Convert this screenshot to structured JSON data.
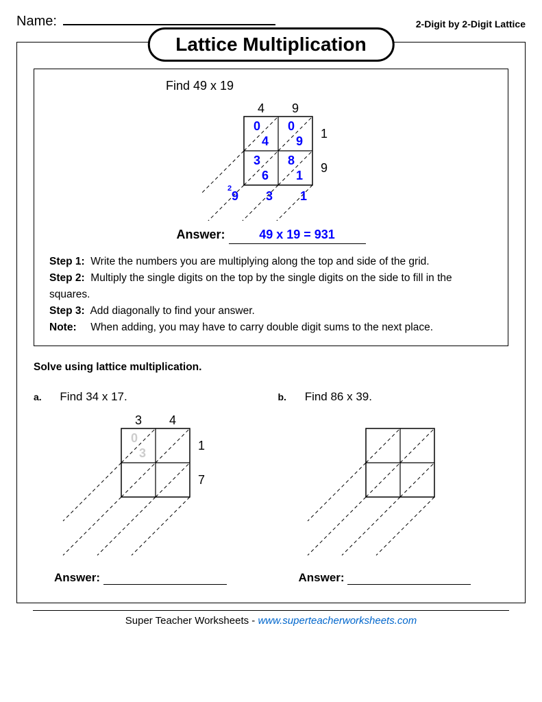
{
  "header": {
    "name_label": "Name:",
    "topic": "2-Digit by 2-Digit Lattice"
  },
  "title": "Lattice Multiplication",
  "example": {
    "prompt": "Find 49 x 19",
    "top_digits": [
      "4",
      "9"
    ],
    "side_digits": [
      "1",
      "9"
    ],
    "cells": [
      {
        "tl": "0",
        "br": "4"
      },
      {
        "tl": "0",
        "br": "9"
      },
      {
        "tl": "3",
        "br": "6"
      },
      {
        "tl": "8",
        "br": "1"
      }
    ],
    "diag_sums": [
      "9",
      "3",
      "1"
    ],
    "carry": "2",
    "answer_label": "Answer:",
    "answer_value": "49 x 19 = 931"
  },
  "steps": [
    {
      "label": "Step 1:",
      "text": "Write the numbers you are multiplying along the top and side of the grid."
    },
    {
      "label": "Step 2:",
      "text": "Multiply the single digits on the top by the single digits on the side to fill in the squares."
    },
    {
      "label": "Step 3:",
      "text": "Add diagonally to find your answer."
    },
    {
      "label": "Note:",
      "text": "When adding, you may have to carry double digit sums to the next place."
    }
  ],
  "instruction": "Solve using lattice multiplication.",
  "problems": [
    {
      "letter": "a.",
      "prompt": "Find 34 x 17.",
      "top_digits": [
        "3",
        "4"
      ],
      "side_digits": [
        "1",
        "7"
      ],
      "faded": {
        "tl": "0",
        "br": "3"
      },
      "answer_label": "Answer:"
    },
    {
      "letter": "b.",
      "prompt": "Find 86 x 39.",
      "top_digits": [
        "",
        ""
      ],
      "side_digits": [
        "",
        ""
      ],
      "faded": null,
      "answer_label": "Answer:"
    }
  ],
  "footer": {
    "text": "Super Teacher Worksheets - ",
    "url": "www.superteacherworksheets.com"
  },
  "style": {
    "digit_color": "#0000ff",
    "faded_color": "#cccccc",
    "stroke": "#000000",
    "dash": "5,4",
    "cell_size": 50,
    "font_size_digit": 18,
    "font_size_small": 11,
    "font_family": "Helvetica, Arial, sans-serif"
  }
}
